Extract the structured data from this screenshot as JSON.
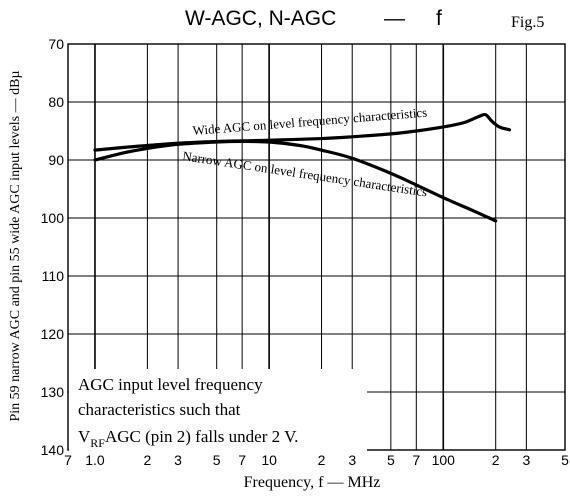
{
  "chart_data": {
    "type": "line",
    "title": "W-AGC, N-AGC",
    "title_dash": "—",
    "title_var": "f",
    "fig_label": "Fig.5",
    "xlabel": "Frequency, f — MHz",
    "ylabel": "Pin 59 narrow AGC and pin 55 wide AGC input levels — dBµ",
    "x_scale": "log",
    "xlim": [
      0.7,
      500
    ],
    "ylim": [
      70,
      140
    ],
    "y_inverted": true,
    "grid": true,
    "y_ticks": [
      70,
      80,
      90,
      100,
      110,
      120,
      130,
      140
    ],
    "x_ticks": [
      {
        "value": 0.7,
        "label": "7"
      },
      {
        "value": 1.0,
        "label": "1.0"
      },
      {
        "value": 2,
        "label": "2"
      },
      {
        "value": 3,
        "label": "3"
      },
      {
        "value": 5,
        "label": "5"
      },
      {
        "value": 7,
        "label": "7"
      },
      {
        "value": 10,
        "label": "10"
      },
      {
        "value": 20,
        "label": "2"
      },
      {
        "value": 30,
        "label": "3"
      },
      {
        "value": 50,
        "label": "5"
      },
      {
        "value": 70,
        "label": "7"
      },
      {
        "value": 100,
        "label": "100"
      },
      {
        "value": 200,
        "label": "2"
      },
      {
        "value": 300,
        "label": "3"
      },
      {
        "value": 500,
        "label": "5"
      }
    ],
    "series": [
      {
        "name": "Wide AGC on level frequency characteristics",
        "x": [
          1.0,
          1.5,
          2,
          3,
          5,
          7,
          10,
          20,
          30,
          50,
          70,
          100,
          130,
          160,
          175,
          190,
          210,
          240
        ],
        "y": [
          88.3,
          87.8,
          87.5,
          87.1,
          86.8,
          86.7,
          86.6,
          86.3,
          86.0,
          85.5,
          85.0,
          84.3,
          83.6,
          82.5,
          82.2,
          83.3,
          84.3,
          84.8
        ]
      },
      {
        "name": "Narrow AGC on level frequency characteristics",
        "x": [
          1.0,
          1.5,
          2,
          3,
          5,
          7,
          10,
          15,
          20,
          30,
          50,
          70,
          100,
          150,
          200
        ],
        "y": [
          90.0,
          88.7,
          88.0,
          87.3,
          86.9,
          86.8,
          86.9,
          87.5,
          88.3,
          89.7,
          92.3,
          94.3,
          96.5,
          98.8,
          100.5
        ]
      }
    ],
    "annotation": {
      "line1": "AGC input level frequency",
      "line2": "characteristics such that",
      "line3_prefix": "V",
      "line3_sub": "RF",
      "line3_suffix": "AGC (pin 2) falls under 2 V."
    }
  }
}
